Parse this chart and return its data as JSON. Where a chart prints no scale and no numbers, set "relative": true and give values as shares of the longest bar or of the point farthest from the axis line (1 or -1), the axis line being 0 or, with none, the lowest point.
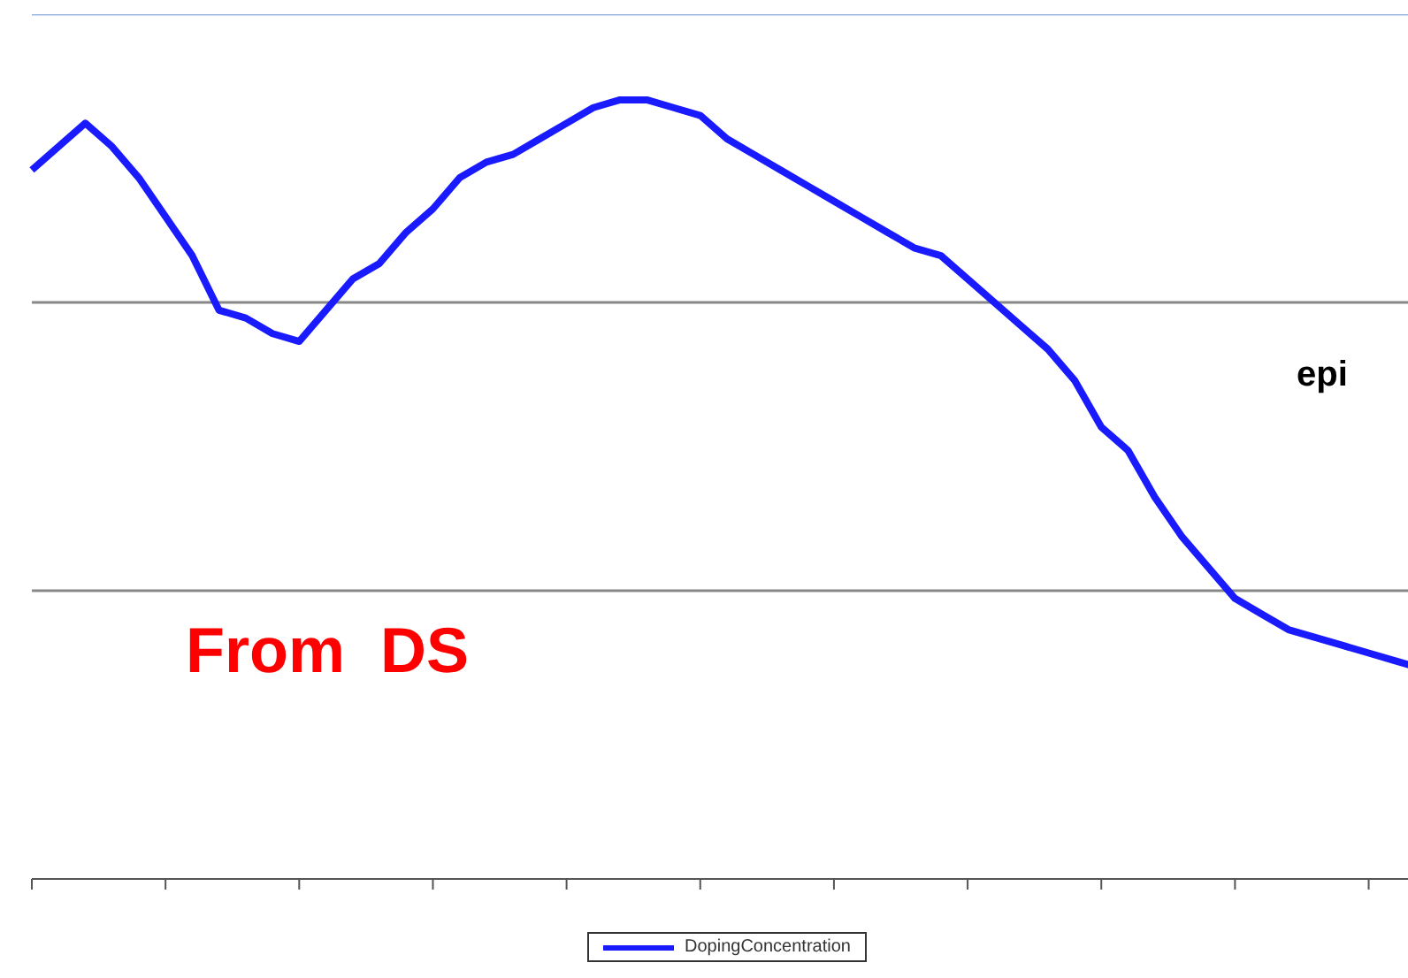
{
  "chart_data": {
    "type": "line",
    "relative": true,
    "ref_lines": [
      {
        "axis": "y",
        "value": 0.37,
        "color": "#888888"
      },
      {
        "axis": "y",
        "value": 0.74,
        "color": "#888888"
      },
      {
        "axis": "y",
        "value": 1.11,
        "color": "#9db8e0"
      }
    ],
    "legend": "bottom",
    "marker": "none",
    "line_style": "solid",
    "annotations": [
      "epi",
      "From  DS"
    ],
    "categories": [
      null,
      null,
      null,
      null,
      null,
      null,
      null,
      null,
      null,
      null,
      null,
      null,
      null,
      null,
      null,
      null,
      null,
      null,
      null,
      null,
      null,
      null,
      null,
      null,
      null,
      null,
      null,
      null,
      null,
      null,
      null,
      null,
      null,
      null,
      null,
      null,
      null,
      null,
      null,
      null,
      null,
      null,
      null,
      null,
      null,
      null,
      null,
      null,
      null,
      null,
      null,
      null,
      null
    ],
    "series": [
      {
        "name": "DopingConcentration",
        "color": "#1a1aff",
        "values": [
          0.91,
          0.94,
          0.97,
          0.94,
          0.9,
          0.85,
          0.8,
          0.73,
          0.72,
          0.7,
          0.69,
          0.73,
          0.77,
          0.79,
          0.83,
          0.86,
          0.9,
          0.92,
          0.93,
          0.95,
          0.97,
          0.99,
          1,
          1,
          0.99,
          0.98,
          0.95,
          0.93,
          0.91,
          0.89,
          0.87,
          0.85,
          0.83,
          0.81,
          0.8,
          0.77,
          0.74,
          0.71,
          0.68,
          0.64,
          0.58,
          0.55,
          0.49,
          0.44,
          0.4,
          0.36,
          0.34,
          0.32,
          0.31,
          0.3,
          0.29,
          0.28,
          0.27
        ]
      }
    ]
  }
}
